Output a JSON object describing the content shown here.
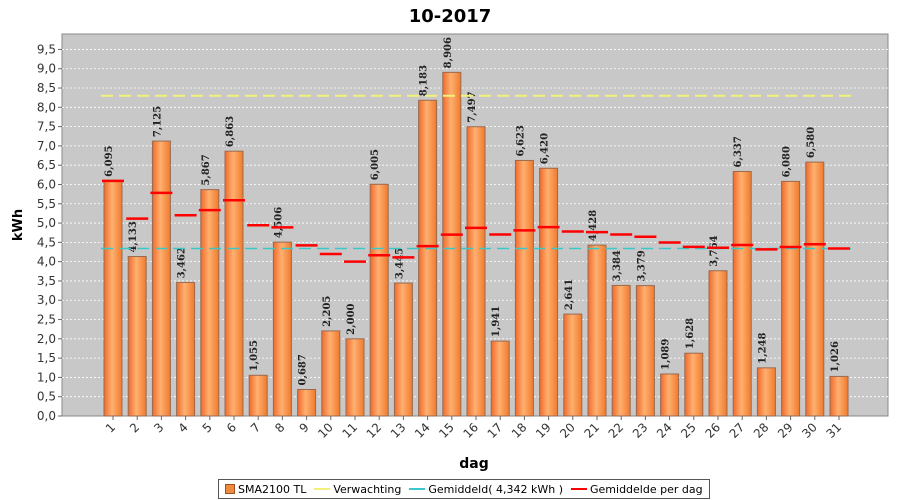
{
  "chart_data": {
    "type": "bar",
    "title": "10-2017",
    "xlabel": "dag",
    "ylabel": "kWh",
    "ylim": [
      0,
      9.9
    ],
    "ytick_step": 0.5,
    "ytick_labels": [
      "0,0",
      "0,5",
      "1,0",
      "1,5",
      "2,0",
      "2,5",
      "3,0",
      "3,5",
      "4,0",
      "4,5",
      "5,0",
      "5,5",
      "6,0",
      "6,5",
      "7,0",
      "7,5",
      "8,0",
      "8,5",
      "9,0",
      "9,5"
    ],
    "grid": true,
    "legend_position": "bottom",
    "categories": [
      "1",
      "2",
      "3",
      "4",
      "5",
      "6",
      "7",
      "8",
      "9",
      "10",
      "11",
      "12",
      "13",
      "14",
      "15",
      "16",
      "17",
      "18",
      "19",
      "20",
      "21",
      "22",
      "23",
      "24",
      "25",
      "26",
      "27",
      "28",
      "29",
      "30",
      "31"
    ],
    "series": [
      {
        "name": "SMA2100 TL",
        "kind": "bar",
        "color": "#f08a3c",
        "values": [
          6.095,
          4.133,
          7.125,
          3.462,
          5.867,
          6.863,
          1.055,
          4.506,
          0.687,
          2.205,
          2.0,
          6.005,
          3.445,
          8.183,
          8.906,
          7.497,
          1.941,
          6.623,
          6.42,
          2.641,
          4.428,
          3.384,
          3.379,
          1.089,
          1.628,
          3.764,
          6.337,
          1.248,
          6.08,
          6.58,
          1.026
        ],
        "data_labels": [
          "6,095",
          "4,133",
          "7,125",
          "3,462",
          "5,867",
          "6,863",
          "1,055",
          "4,506",
          "0,687",
          "2,205",
          "2,000",
          "6,005",
          "3,445",
          "8,183",
          "8,906",
          "7,497",
          "1,941",
          "6,623",
          "6,420",
          "2,641",
          "4,428",
          "3,384",
          "3,379",
          "1,089",
          "1,628",
          "3,764",
          "6,337",
          "1,248",
          "6,080",
          "6,580",
          "1,026"
        ]
      },
      {
        "name": "Verwachting",
        "kind": "line",
        "color": "#f2f27a",
        "value": 8.3
      },
      {
        "name": "Gemiddeld( 4,342 kWh )",
        "kind": "line",
        "color": "#3cc8c8",
        "value": 4.342
      },
      {
        "name": "Gemiddelde per dag",
        "kind": "marker",
        "color": "#ff0000",
        "values": [
          6.095,
          5.114,
          5.784,
          5.204,
          5.336,
          5.591,
          4.943,
          4.888,
          4.421,
          4.199,
          4.0,
          4.167,
          4.111,
          4.402,
          4.702,
          4.877,
          4.704,
          4.811,
          4.896,
          4.783,
          4.766,
          4.703,
          4.645,
          4.497,
          4.382,
          4.359,
          4.432,
          4.318,
          4.379,
          4.452,
          4.342
        ]
      }
    ]
  }
}
